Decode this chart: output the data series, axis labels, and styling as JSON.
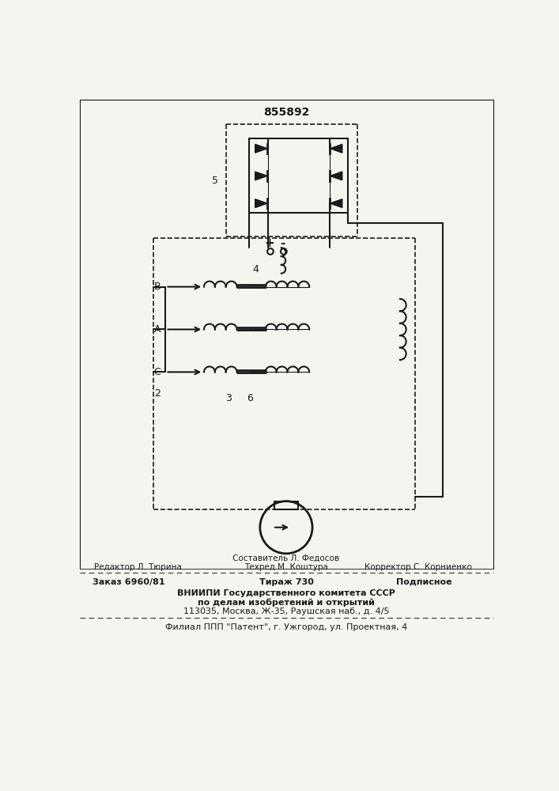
{
  "patent_number": "855892",
  "bg_color": "#f5f5f0",
  "line_color": "#1a1a1a",
  "footer_line1_center_top": "Составитель Л. Федосов",
  "footer_line1_left": "Редактор Л. Тюрина",
  "footer_line1_center": "Техред М. Коштура",
  "footer_line1_right": "Корректор С. Корниенко",
  "footer_line2_left": "Заказ 6960/81",
  "footer_line2_center": "Тираж 730",
  "footer_line2_right": "Подписное",
  "footer_line3": "ВНИИПИ Государственного комитета СССР",
  "footer_line4": "по делам изобретений и открытий",
  "footer_line5": "113035, Москва, Ж-35, Раушская наб., д. 4/5",
  "footer_line6": "Филиал ППП \"Патент\", г. Ужгород, ул. Проектная, 4",
  "label_5": "5",
  "label_4": "4",
  "label_3": "3",
  "label_6": "6",
  "label_2": "2",
  "label_B": "B",
  "label_A": "A",
  "label_C": "C"
}
